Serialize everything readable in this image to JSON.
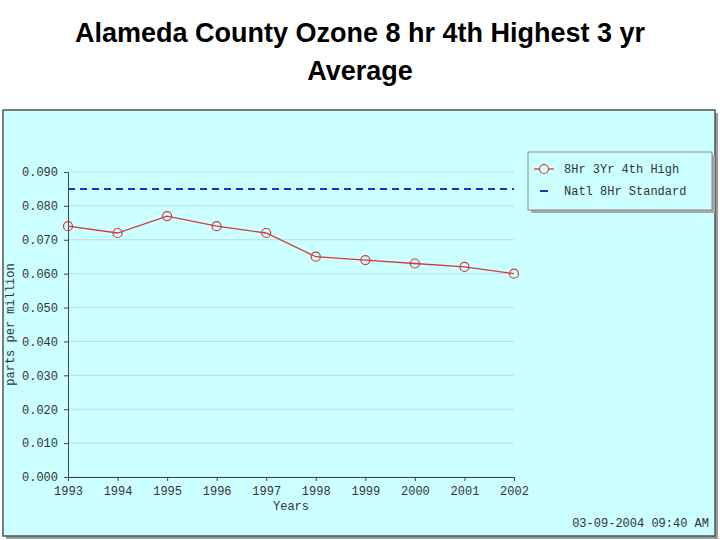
{
  "chart_data": {
    "type": "line",
    "title": "Alameda County Ozone 8 hr 4th Highest 3 yr Average",
    "x_label": "Years",
    "y_label": "parts per million",
    "x": [
      1993,
      1994,
      1995,
      1996,
      1997,
      1998,
      1999,
      2000,
      2001,
      2002
    ],
    "xlim": [
      1993,
      2002
    ],
    "xticks": [
      1993,
      1994,
      1995,
      1996,
      1997,
      1998,
      1999,
      2000,
      2001,
      2002
    ],
    "ylim": [
      0,
      0.09
    ],
    "yticks": [
      {
        "value": 0,
        "label": "0.000"
      },
      {
        "value": 0.01,
        "label": "0.010"
      },
      {
        "value": 0.02,
        "label": "0.020"
      },
      {
        "value": 0.03,
        "label": "0.030"
      },
      {
        "value": 0.04,
        "label": "0.040"
      },
      {
        "value": 0.05,
        "label": "0.050"
      },
      {
        "value": 0.06,
        "label": "0.060"
      },
      {
        "value": 0.07,
        "label": "0.070"
      },
      {
        "value": 0.08,
        "label": "0.080"
      },
      {
        "value": 0.09,
        "label": "0.090"
      }
    ],
    "grid": true,
    "legend": "upper right",
    "series": [
      {
        "name": "8Hr 3Yr 4th High",
        "color": "#d83a3a",
        "marker": "circle",
        "line_style": "solid",
        "values": [
          0.074,
          0.072,
          0.077,
          0.074,
          0.072,
          0.065,
          0.064,
          0.063,
          0.062,
          0.06
        ]
      },
      {
        "name": "Natl 8Hr Standard",
        "color": "#1f2fc8",
        "marker": "none",
        "line_style": "dashed",
        "values": [
          0.085,
          0.085,
          0.085,
          0.085,
          0.085,
          0.085,
          0.085,
          0.085,
          0.085,
          0.085
        ]
      }
    ],
    "annotations": [
      "03-09-2004 09:40 AM"
    ]
  }
}
